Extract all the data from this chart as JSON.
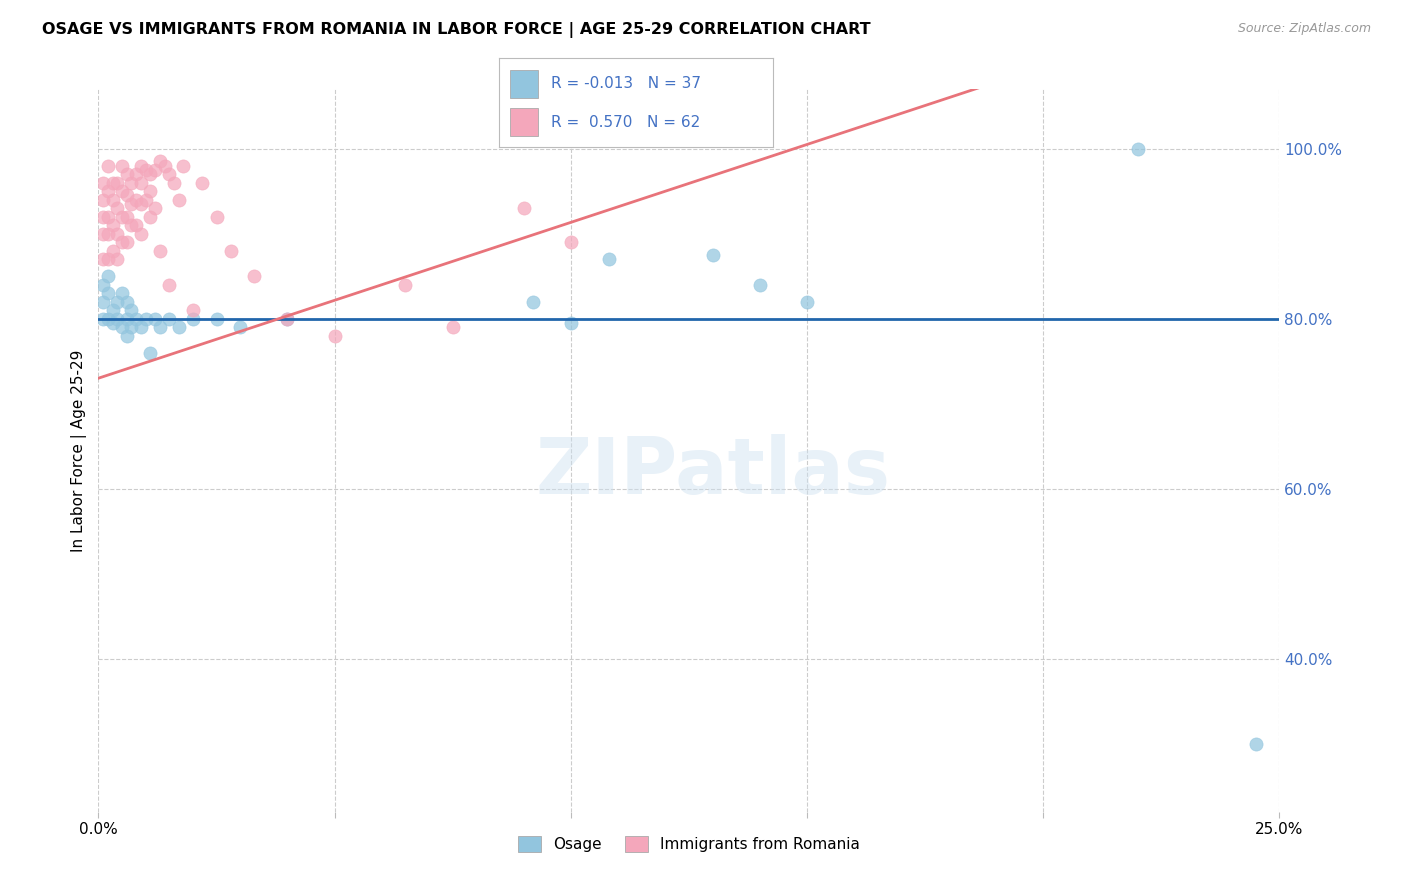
{
  "title": "OSAGE VS IMMIGRANTS FROM ROMANIA IN LABOR FORCE | AGE 25-29 CORRELATION CHART",
  "source": "Source: ZipAtlas.com",
  "ylabel": "In Labor Force | Age 25-29",
  "xlim": [
    0.0,
    0.25
  ],
  "ylim": [
    0.22,
    1.07
  ],
  "yticks_right": [
    1.0,
    0.8,
    0.6,
    0.4
  ],
  "ytick_labels_right": [
    "100.0%",
    "80.0%",
    "60.0%",
    "40.0%"
  ],
  "grid_yticks": [
    1.0,
    0.8,
    0.6,
    0.4
  ],
  "blue_R": -0.013,
  "blue_N": 37,
  "pink_R": 0.57,
  "pink_N": 62,
  "blue_color": "#92c5de",
  "blue_edge": "#92c5de",
  "pink_color": "#f4a7bb",
  "pink_edge": "#f4a7bb",
  "blue_line_color": "#2166ac",
  "pink_line_color": "#e8737a",
  "blue_label": "Osage",
  "pink_label": "Immigrants from Romania",
  "watermark": "ZIPatlas",
  "osage_x": [
    0.001,
    0.001,
    0.001,
    0.002,
    0.002,
    0.002,
    0.003,
    0.003,
    0.004,
    0.004,
    0.005,
    0.005,
    0.006,
    0.006,
    0.006,
    0.007,
    0.007,
    0.008,
    0.009,
    0.01,
    0.011,
    0.012,
    0.013,
    0.015,
    0.017,
    0.02,
    0.025,
    0.03,
    0.04,
    0.092,
    0.1,
    0.108,
    0.13,
    0.14,
    0.15,
    0.22,
    0.245
  ],
  "osage_y": [
    0.84,
    0.82,
    0.8,
    0.85,
    0.83,
    0.8,
    0.81,
    0.795,
    0.82,
    0.8,
    0.83,
    0.79,
    0.82,
    0.8,
    0.78,
    0.81,
    0.79,
    0.8,
    0.79,
    0.8,
    0.76,
    0.8,
    0.79,
    0.8,
    0.79,
    0.8,
    0.8,
    0.79,
    0.8,
    0.82,
    0.795,
    0.87,
    0.875,
    0.84,
    0.82,
    1.0,
    0.3
  ],
  "romania_x": [
    0.001,
    0.001,
    0.001,
    0.001,
    0.001,
    0.002,
    0.002,
    0.002,
    0.002,
    0.002,
    0.003,
    0.003,
    0.003,
    0.003,
    0.004,
    0.004,
    0.004,
    0.004,
    0.005,
    0.005,
    0.005,
    0.005,
    0.006,
    0.006,
    0.006,
    0.006,
    0.007,
    0.007,
    0.007,
    0.008,
    0.008,
    0.008,
    0.009,
    0.009,
    0.009,
    0.009,
    0.01,
    0.01,
    0.011,
    0.011,
    0.011,
    0.012,
    0.012,
    0.013,
    0.013,
    0.014,
    0.015,
    0.015,
    0.016,
    0.017,
    0.018,
    0.02,
    0.022,
    0.025,
    0.028,
    0.033,
    0.04,
    0.05,
    0.065,
    0.075,
    0.09,
    0.1
  ],
  "romania_y": [
    0.96,
    0.94,
    0.92,
    0.9,
    0.87,
    0.98,
    0.95,
    0.92,
    0.9,
    0.87,
    0.96,
    0.94,
    0.91,
    0.88,
    0.96,
    0.93,
    0.9,
    0.87,
    0.98,
    0.95,
    0.92,
    0.89,
    0.97,
    0.945,
    0.92,
    0.89,
    0.96,
    0.935,
    0.91,
    0.97,
    0.94,
    0.91,
    0.98,
    0.96,
    0.935,
    0.9,
    0.975,
    0.94,
    0.97,
    0.95,
    0.92,
    0.975,
    0.93,
    0.985,
    0.88,
    0.98,
    0.97,
    0.84,
    0.96,
    0.94,
    0.98,
    0.81,
    0.96,
    0.92,
    0.88,
    0.85,
    0.8,
    0.78,
    0.84,
    0.79,
    0.93,
    0.89
  ]
}
